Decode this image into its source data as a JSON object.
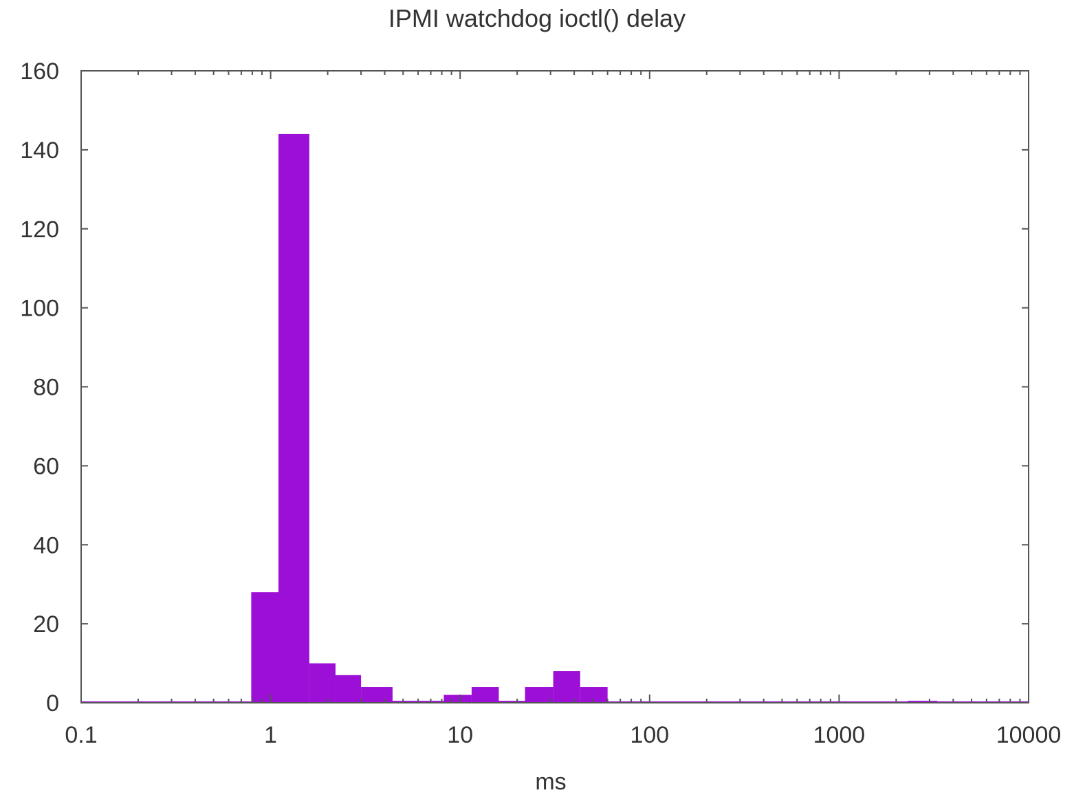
{
  "chart_data": {
    "type": "bar",
    "title": "IPMI watchdog ioctl() delay",
    "xlabel": "ms",
    "ylabel": "",
    "xscale": "log",
    "xlim": [
      0.1,
      10000
    ],
    "ylim": [
      0,
      160
    ],
    "xticks": [
      "0.1",
      "1",
      "10",
      "100",
      "1000",
      "10000"
    ],
    "yticks": [
      "0",
      "20",
      "40",
      "60",
      "80",
      "100",
      "120",
      "140",
      "160"
    ],
    "grid": false,
    "legend": false,
    "color": "#9b0fd6",
    "bins": [
      {
        "from": 0.1,
        "to": 0.79,
        "count": 0
      },
      {
        "from": 0.79,
        "to": 1.1,
        "count": 28
      },
      {
        "from": 1.1,
        "to": 1.6,
        "count": 144
      },
      {
        "from": 1.6,
        "to": 2.2,
        "count": 10
      },
      {
        "from": 2.2,
        "to": 3.0,
        "count": 7
      },
      {
        "from": 3.0,
        "to": 4.4,
        "count": 4
      },
      {
        "from": 4.4,
        "to": 8.2,
        "count": 0.5
      },
      {
        "from": 8.2,
        "to": 11.5,
        "count": 2
      },
      {
        "from": 11.5,
        "to": 16,
        "count": 4
      },
      {
        "from": 16,
        "to": 22,
        "count": 0.5
      },
      {
        "from": 22,
        "to": 31,
        "count": 4
      },
      {
        "from": 31,
        "to": 43,
        "count": 8
      },
      {
        "from": 43,
        "to": 60,
        "count": 4
      },
      {
        "from": 60,
        "to": 2300,
        "count": 0
      },
      {
        "from": 2300,
        "to": 3300,
        "count": 0.5
      },
      {
        "from": 3300,
        "to": 10000,
        "count": 0
      }
    ]
  }
}
